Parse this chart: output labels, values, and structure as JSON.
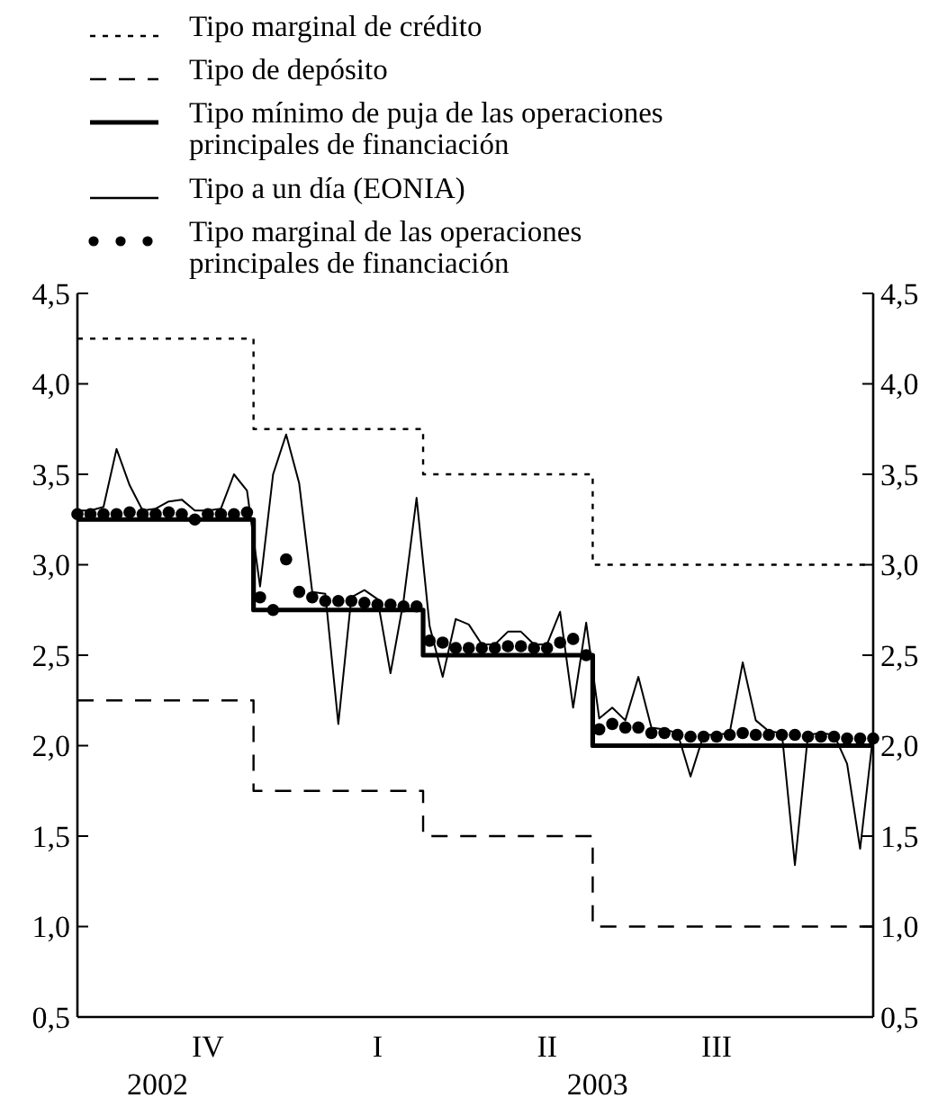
{
  "chart_data": {
    "type": "line",
    "categories": [
      null,
      null,
      null,
      null,
      null,
      null,
      null,
      null,
      null,
      null,
      "IV",
      null,
      null,
      null,
      null,
      null,
      null,
      null,
      null,
      null,
      null,
      null,
      null,
      "I",
      null,
      null,
      null,
      null,
      null,
      null,
      null,
      null,
      null,
      null,
      null,
      null,
      "II",
      null,
      null,
      null,
      null,
      null,
      null,
      null,
      null,
      null,
      null,
      null,
      null,
      "III",
      null,
      null,
      null,
      null,
      null,
      null,
      null,
      null,
      null,
      null,
      null,
      null
    ],
    "ylim": [
      0.5,
      4.5
    ],
    "yticks": [
      {
        "value": 0.5,
        "label": "0,5"
      },
      {
        "value": 1.0,
        "label": "1,0"
      },
      {
        "value": 1.5,
        "label": "1,5"
      },
      {
        "value": 2.0,
        "label": "2,0"
      },
      {
        "value": 2.5,
        "label": "2,5"
      },
      {
        "value": 3.0,
        "label": "3,0"
      },
      {
        "value": 3.5,
        "label": "3,5"
      },
      {
        "value": 4.0,
        "label": "4,0"
      },
      {
        "value": 4.5,
        "label": "4,5"
      }
    ],
    "y2lim": [
      0.5,
      4.5
    ],
    "y2ticks": [
      {
        "value": 0.5,
        "label": "0,5"
      },
      {
        "value": 1.0,
        "label": "1,0"
      },
      {
        "value": 1.5,
        "label": "1,5"
      },
      {
        "value": 2.0,
        "label": "2,0"
      },
      {
        "value": 2.5,
        "label": "2,5"
      },
      {
        "value": 3.0,
        "label": "3,0"
      },
      {
        "value": 3.5,
        "label": "3,5"
      },
      {
        "value": 4.0,
        "label": "4,0"
      },
      {
        "value": 4.5,
        "label": "4,5"
      }
    ],
    "annotations": [
      "2002",
      "2003"
    ],
    "legend": "top left",
    "series": [
      {
        "name": "Tipo marginal de crédito",
        "type": "step",
        "line_style": "dotted",
        "color": "#000000",
        "values": [
          4.25,
          4.25,
          4.25,
          4.25,
          4.25,
          4.25,
          4.25,
          4.25,
          4.25,
          4.25,
          4.25,
          4.25,
          4.25,
          4.25,
          3.75,
          3.75,
          3.75,
          3.75,
          3.75,
          3.75,
          3.75,
          3.75,
          3.75,
          3.75,
          3.75,
          3.75,
          3.75,
          3.5,
          3.5,
          3.5,
          3.5,
          3.5,
          3.5,
          3.5,
          3.5,
          3.5,
          3.5,
          3.5,
          3.5,
          3.5,
          3.0,
          3.0,
          3.0,
          3.0,
          3.0,
          3.0,
          3.0,
          3.0,
          3.0,
          3.0,
          3.0,
          3.0,
          3.0,
          3.0,
          3.0,
          3.0,
          3.0,
          3.0,
          3.0,
          3.0,
          3.0,
          3.0
        ]
      },
      {
        "name": "Tipo de depósito",
        "type": "step",
        "line_style": "dashed",
        "color": "#000000",
        "values": [
          2.25,
          2.25,
          2.25,
          2.25,
          2.25,
          2.25,
          2.25,
          2.25,
          2.25,
          2.25,
          2.25,
          2.25,
          2.25,
          2.25,
          1.75,
          1.75,
          1.75,
          1.75,
          1.75,
          1.75,
          1.75,
          1.75,
          1.75,
          1.75,
          1.75,
          1.75,
          1.75,
          1.5,
          1.5,
          1.5,
          1.5,
          1.5,
          1.5,
          1.5,
          1.5,
          1.5,
          1.5,
          1.5,
          1.5,
          1.5,
          1.0,
          1.0,
          1.0,
          1.0,
          1.0,
          1.0,
          1.0,
          1.0,
          1.0,
          1.0,
          1.0,
          1.0,
          1.0,
          1.0,
          1.0,
          1.0,
          1.0,
          1.0,
          1.0,
          1.0,
          1.0,
          1.0
        ]
      },
      {
        "name": "Tipo mínimo de puja de las operaciones principales de financiación",
        "type": "step",
        "line_style": "solid",
        "color": "#000000",
        "values": [
          3.25,
          3.25,
          3.25,
          3.25,
          3.25,
          3.25,
          3.25,
          3.25,
          3.25,
          3.25,
          3.25,
          3.25,
          3.25,
          3.25,
          2.75,
          2.75,
          2.75,
          2.75,
          2.75,
          2.75,
          2.75,
          2.75,
          2.75,
          2.75,
          2.75,
          2.75,
          2.75,
          2.5,
          2.5,
          2.5,
          2.5,
          2.5,
          2.5,
          2.5,
          2.5,
          2.5,
          2.5,
          2.5,
          2.5,
          2.5,
          2.0,
          2.0,
          2.0,
          2.0,
          2.0,
          2.0,
          2.0,
          2.0,
          2.0,
          2.0,
          2.0,
          2.0,
          2.0,
          2.0,
          2.0,
          2.0,
          2.0,
          2.0,
          2.0,
          2.0,
          2.0,
          2.0
        ]
      },
      {
        "name": "Tipo a un día (EONIA)",
        "type": "line",
        "line_style": "solid",
        "color": "#000000",
        "values": [
          3.3,
          3.3,
          3.32,
          3.64,
          3.44,
          3.3,
          3.31,
          3.35,
          3.36,
          3.3,
          3.3,
          3.31,
          3.5,
          3.41,
          2.88,
          3.5,
          3.72,
          3.45,
          2.85,
          2.84,
          2.12,
          2.82,
          2.86,
          2.81,
          2.4,
          2.8,
          3.37,
          2.66,
          2.38,
          2.7,
          2.67,
          2.56,
          2.56,
          2.63,
          2.63,
          2.56,
          2.56,
          2.74,
          2.21,
          2.68,
          2.15,
          2.21,
          2.14,
          2.38,
          2.1,
          2.09,
          2.07,
          1.83,
          2.06,
          2.06,
          2.07,
          2.46,
          2.14,
          2.08,
          2.07,
          1.34,
          2.06,
          2.07,
          2.06,
          1.9,
          1.43,
          2.06
        ]
      },
      {
        "name": "Tipo marginal de las operaciones principales de financiación",
        "type": "scatter",
        "marker": "circle",
        "color": "#000000",
        "values": [
          3.28,
          3.28,
          3.28,
          3.28,
          3.29,
          3.28,
          3.28,
          3.29,
          3.28,
          3.25,
          3.28,
          3.28,
          3.28,
          3.29,
          2.82,
          2.75,
          3.03,
          2.85,
          2.82,
          2.8,
          2.8,
          2.8,
          2.79,
          2.78,
          2.78,
          2.77,
          2.77,
          2.58,
          2.57,
          2.54,
          2.54,
          2.54,
          2.54,
          2.55,
          2.55,
          2.54,
          2.54,
          2.57,
          2.59,
          2.5,
          2.09,
          2.12,
          2.1,
          2.1,
          2.07,
          2.07,
          2.06,
          2.05,
          2.05,
          2.05,
          2.06,
          2.07,
          2.06,
          2.06,
          2.06,
          2.06,
          2.05,
          2.05,
          2.05,
          2.04,
          2.04,
          2.04
        ]
      }
    ]
  }
}
